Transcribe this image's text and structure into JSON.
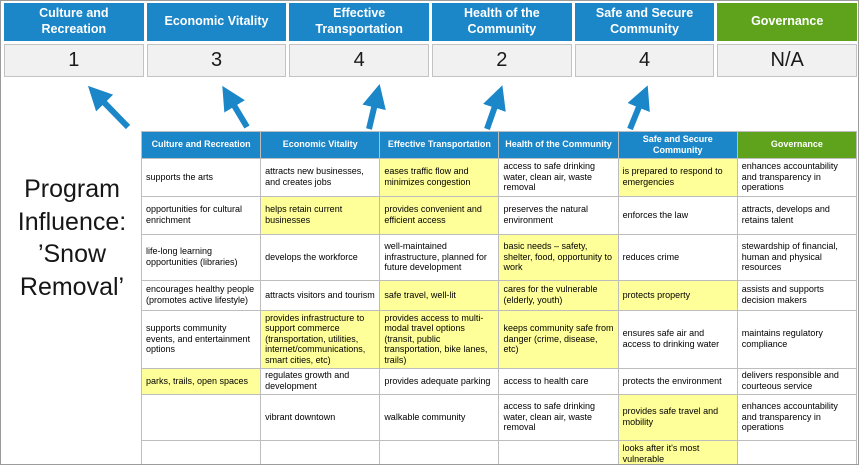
{
  "colors": {
    "blue": "#1b86c8",
    "green": "#5fa31c",
    "highlight": "#ffff99",
    "score_bg": "#f1f1f1"
  },
  "program_label": "Program Influence: ’Snow Removal’",
  "summary": {
    "columns": [
      {
        "label": "Culture and Recreation",
        "score": "1",
        "theme": "blue"
      },
      {
        "label": "Economic Vitality",
        "score": "3",
        "theme": "blue"
      },
      {
        "label": "Effective Transportation",
        "score": "4",
        "theme": "blue"
      },
      {
        "label": "Health of the Community",
        "score": "2",
        "theme": "blue"
      },
      {
        "label": "Safe and Secure Community",
        "score": "4",
        "theme": "blue"
      },
      {
        "label": "Governance",
        "score": "N/A",
        "theme": "green"
      }
    ]
  },
  "matrix": {
    "headers": [
      {
        "label": "Culture and Recreation",
        "theme": "blue"
      },
      {
        "label": "Economic Vitality",
        "theme": "blue"
      },
      {
        "label": "Effective Transportation",
        "theme": "blue"
      },
      {
        "label": "Health of the Community",
        "theme": "blue"
      },
      {
        "label": "Safe and Secure Community",
        "theme": "blue"
      },
      {
        "label": "Governance",
        "theme": "green"
      }
    ],
    "rows": [
      [
        {
          "text": "supports the arts",
          "hl": false
        },
        {
          "text": "attracts new businesses, and creates jobs",
          "hl": false
        },
        {
          "text": "eases traffic flow and minimizes congestion",
          "hl": true
        },
        {
          "text": "access to safe drinking water, clean air, waste removal",
          "hl": false
        },
        {
          "text": "is prepared to respond to emergencies",
          "hl": true
        },
        {
          "text": "enhances accountability and transparency in operations",
          "hl": false
        }
      ],
      [
        {
          "text": "opportunities for cultural enrichment",
          "hl": false
        },
        {
          "text": "helps retain current businesses",
          "hl": true
        },
        {
          "text": "provides convenient and efficient access",
          "hl": true
        },
        {
          "text": "preserves the natural environment",
          "hl": false
        },
        {
          "text": "enforces the law",
          "hl": false
        },
        {
          "text": "attracts, develops and retains talent",
          "hl": false
        }
      ],
      [
        {
          "text": "life-long learning opportunities (libraries)",
          "hl": false
        },
        {
          "text": "develops the workforce",
          "hl": false
        },
        {
          "text": "well-maintained infrastructure, planned for future development",
          "hl": false
        },
        {
          "text": "basic needs – safety, shelter, food, opportunity to work",
          "hl": true
        },
        {
          "text": "reduces crime",
          "hl": false
        },
        {
          "text": "stewardship of financial, human and physical resources",
          "hl": false
        }
      ],
      [
        {
          "text": "encourages healthy people (promotes active lifestyle)",
          "hl": false
        },
        {
          "text": "attracts visitors and tourism",
          "hl": false
        },
        {
          "text": "safe travel, well-lit",
          "hl": true
        },
        {
          "text": "cares for the vulnerable (elderly, youth)",
          "hl": true
        },
        {
          "text": "protects property",
          "hl": true
        },
        {
          "text": "assists and supports decision makers",
          "hl": false
        }
      ],
      [
        {
          "text": "supports community events, and entertainment options",
          "hl": false
        },
        {
          "text": "provides infrastructure to support commerce (transportation, utilities, internet/communications, smart cities, etc)",
          "hl": true
        },
        {
          "text": "provides access to multi-modal travel options (transit, public transportation, bike lanes, trails)",
          "hl": true
        },
        {
          "text": "keeps community safe from danger (crime, disease, etc)",
          "hl": true
        },
        {
          "text": "ensures safe air and access to drinking water",
          "hl": false
        },
        {
          "text": "maintains regulatory compliance",
          "hl": false
        }
      ],
      [
        {
          "text": "parks, trails, open spaces",
          "hl": true
        },
        {
          "text": "regulates growth and development",
          "hl": false
        },
        {
          "text": "provides adequate parking",
          "hl": false
        },
        {
          "text": "access to health care",
          "hl": false
        },
        {
          "text": "protects the environment",
          "hl": false
        },
        {
          "text": "delivers responsible and courteous service",
          "hl": false
        }
      ],
      [
        {
          "text": "",
          "hl": false
        },
        {
          "text": "vibrant downtown",
          "hl": false
        },
        {
          "text": "walkable community",
          "hl": false
        },
        {
          "text": "access to safe drinking water, clean air, waste removal",
          "hl": false
        },
        {
          "text": "provides safe travel and mobility",
          "hl": true
        },
        {
          "text": "enhances accountability and transparency in operations",
          "hl": false
        }
      ],
      [
        {
          "text": "",
          "hl": false
        },
        {
          "text": "",
          "hl": false
        },
        {
          "text": "",
          "hl": false
        },
        {
          "text": "",
          "hl": false
        },
        {
          "text": "looks after it's most vulnerable",
          "hl": true
        },
        {
          "text": "",
          "hl": false
        }
      ]
    ]
  }
}
